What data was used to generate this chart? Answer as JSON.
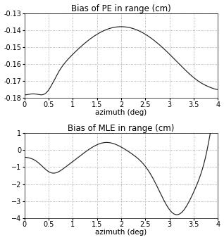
{
  "title1": "Bias of PE in range (cm)",
  "title2": "Bias of MLE in range (cm)",
  "xlabel": "azimuth (deg)",
  "xlim": [
    0,
    4
  ],
  "ylim1": [
    -0.18,
    -0.13
  ],
  "ylim2": [
    -4,
    1
  ],
  "yticks1": [
    -0.18,
    -0.17,
    -0.16,
    -0.15,
    -0.14,
    -0.13
  ],
  "yticks2": [
    -4,
    -3,
    -2,
    -1,
    0,
    1
  ],
  "xticks": [
    0,
    0.5,
    1,
    1.5,
    2,
    2.5,
    3,
    3.5,
    4
  ],
  "line_color": "#222222",
  "grid_color": "#999999",
  "bg_color": "#ffffff",
  "title_fontsize": 8.5,
  "axis_fontsize": 7.5,
  "tick_fontsize": 7
}
